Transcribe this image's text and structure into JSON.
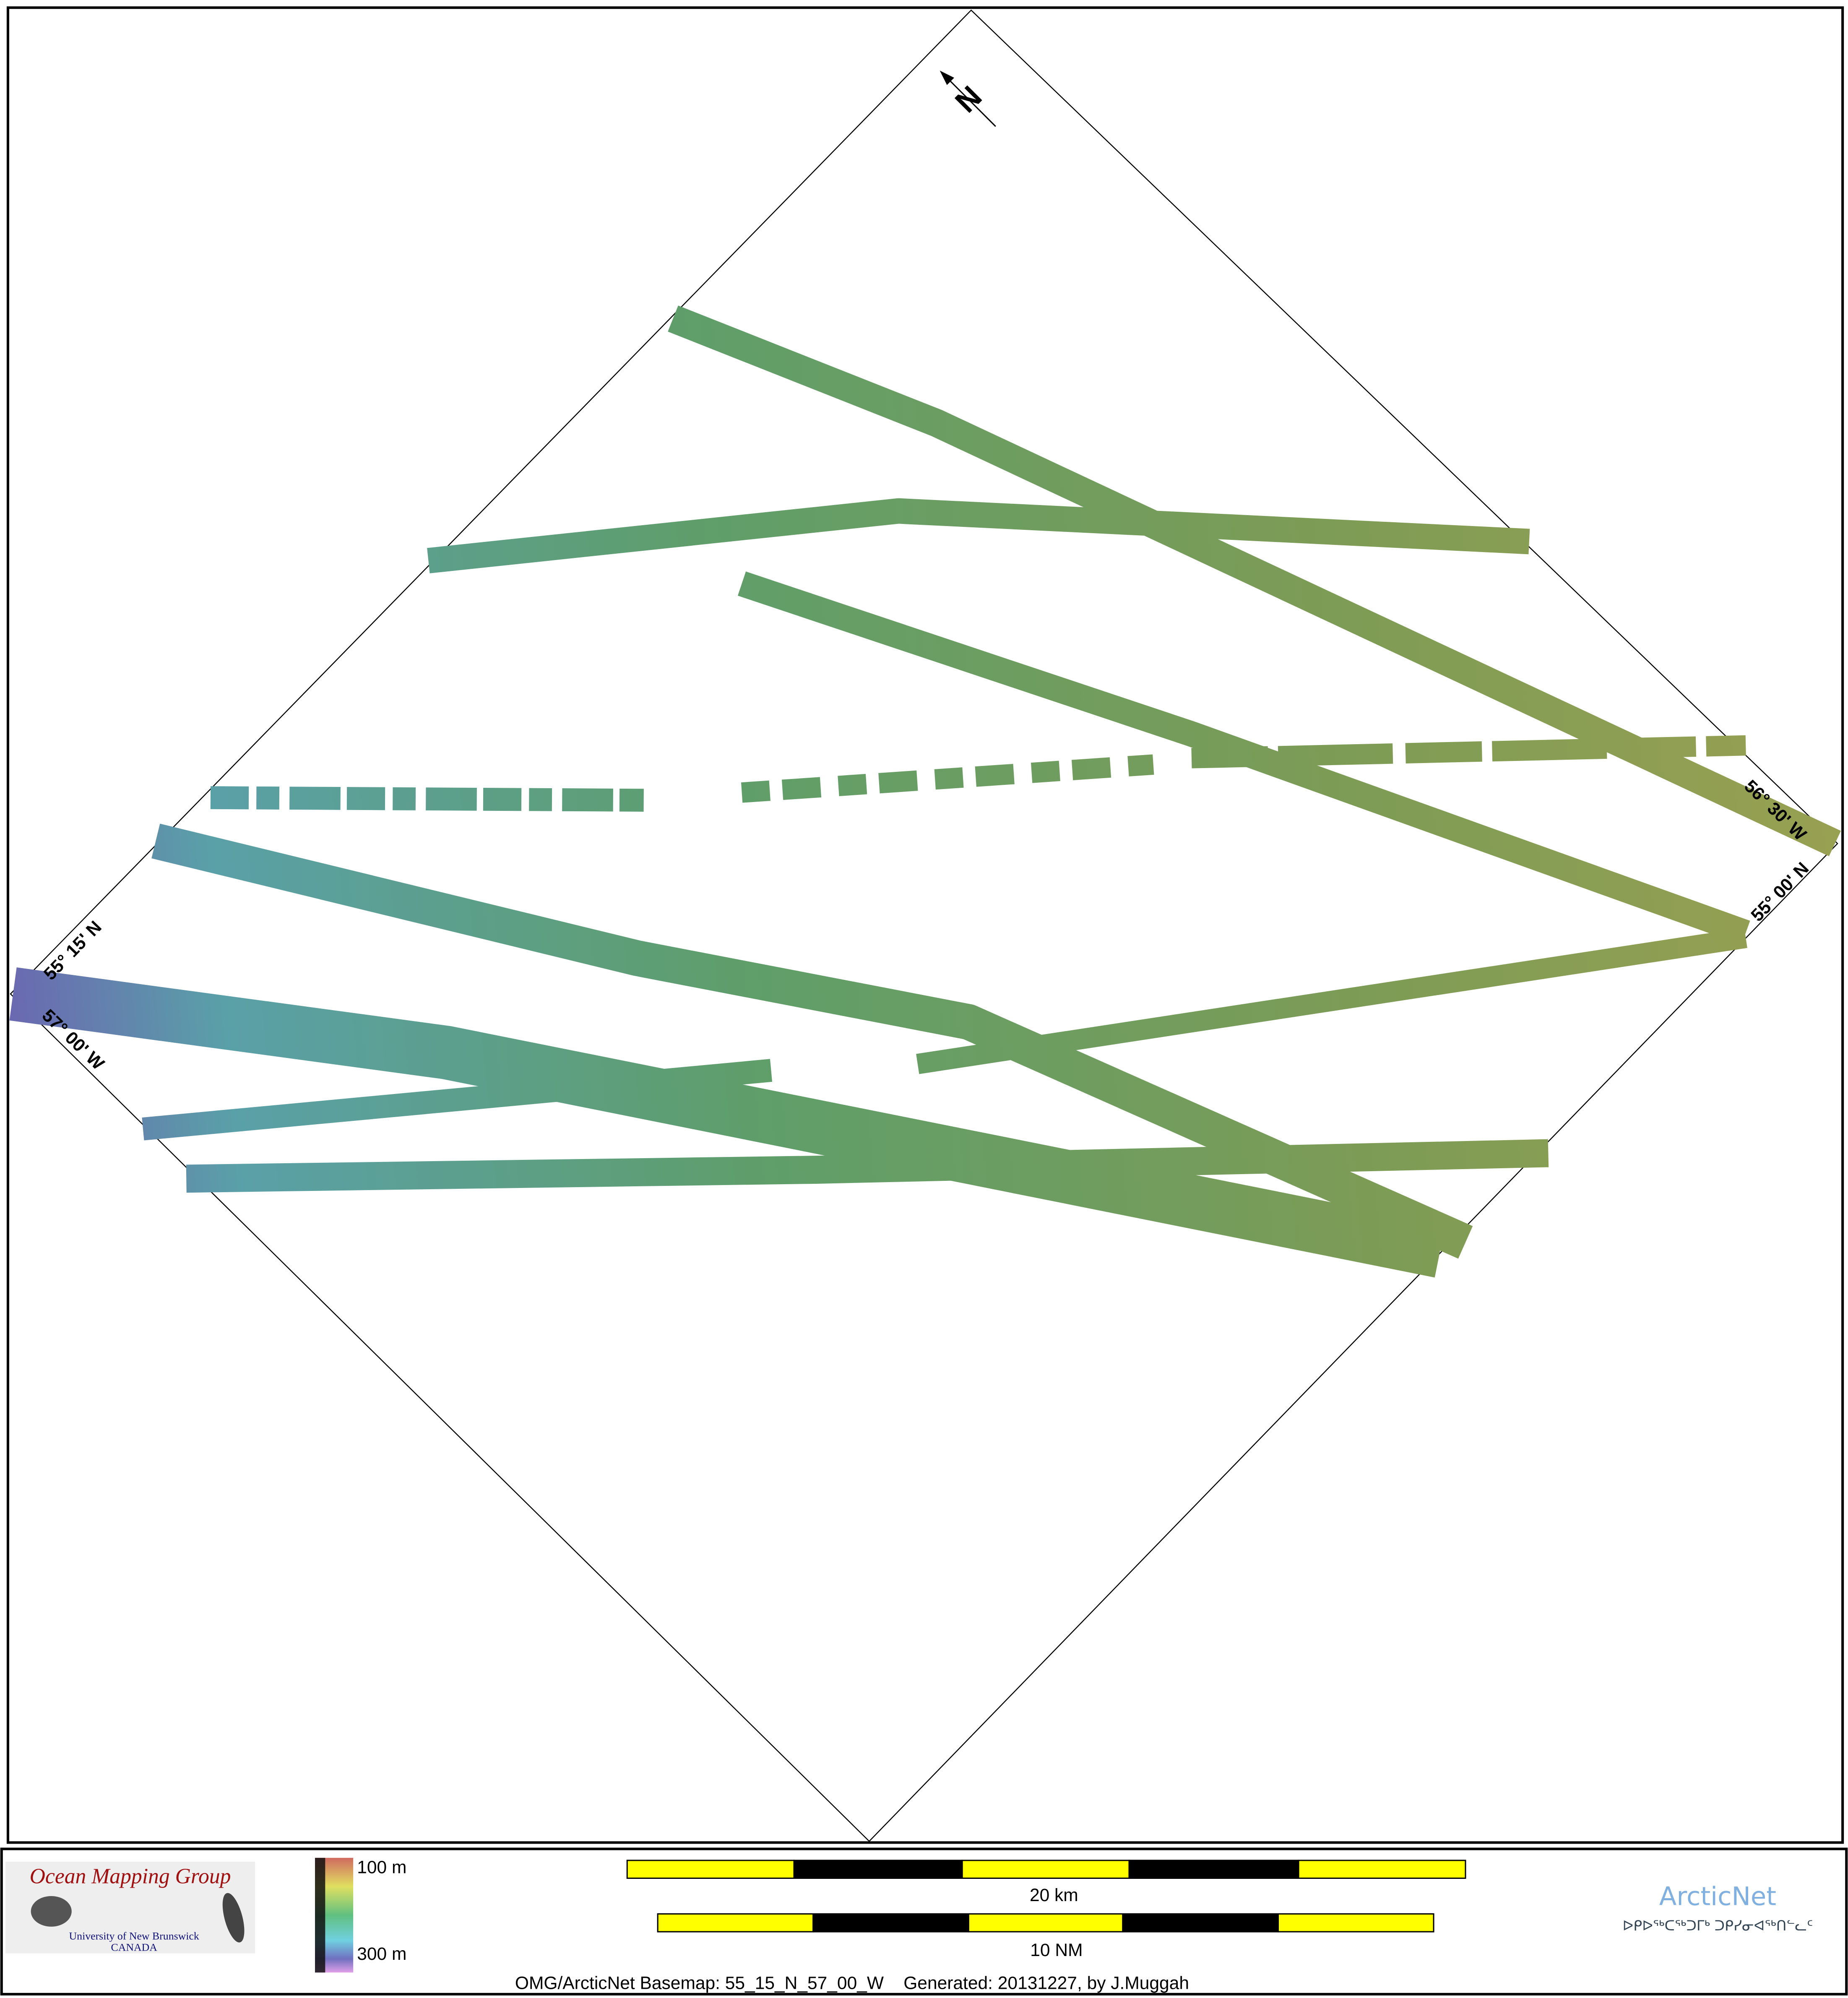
{
  "map": {
    "north_arrow_label": "N",
    "corner_labels": {
      "top_right_lon": "56° 30' W",
      "right_lat": "55° 00' N",
      "left_lat": "55° 15' N",
      "left_lon": "57° 00' W"
    },
    "swath_colors": {
      "deep": "#6a68b0",
      "mid": "#5aa07a",
      "shallow": "#8a9a50"
    }
  },
  "footer": {
    "logo_omg": {
      "title": "Ocean Mapping Group",
      "line1": "University of New Brunswick",
      "line2": "CANADA"
    },
    "depth_scale": {
      "top_label": "100 m",
      "bottom_label": "300 m"
    },
    "scale_bar_km": {
      "label": "20 km",
      "colors": [
        "#ffff00",
        "#000000"
      ]
    },
    "scale_bar_nm": {
      "label": "10 NM"
    },
    "caption": "OMG/ArcticNet Basemap: 55_15_N_57_00_W    Generated: 20131227, by J.Muggah",
    "logo_arcticnet": {
      "title": "ArcticNet",
      "subtitle": "ᐅᑭᐅᖅᑕᖅᑐᒥᒃ ᑐᑭᓯᓂᐊᖅᑎᓪᓚᑦ"
    }
  }
}
